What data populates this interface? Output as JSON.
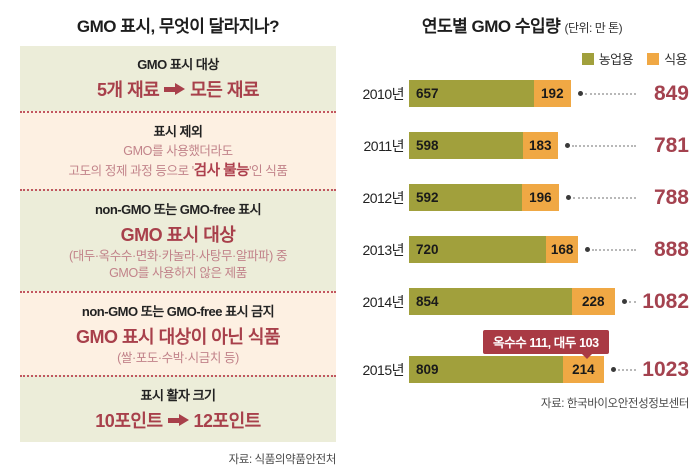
{
  "colors": {
    "section_green_bg": "#ecedd9",
    "section_cream_bg": "#fdf0e2",
    "separator_red": "#c2565f",
    "accent_red": "#a8404b",
    "rose_text": "#c2838a",
    "total_red": "#a4424f",
    "callout_bg": "#a93a44"
  },
  "icons": {
    "arrow": "arrow-right",
    "connector": "dot"
  },
  "left_panel": {
    "title": "GMO 표시, 무엇이 달라지나?",
    "sections": [
      {
        "heading": "GMO 표시 대상",
        "before": "5개 재료",
        "after": "모든 재료"
      },
      {
        "heading": "표시 제외",
        "line1": "GMO를 사용했더라도",
        "line2_prefix": "고도의 정제 과정 등으로 '",
        "line2_strong": "검사 불능",
        "line2_suffix": "'인 식품"
      },
      {
        "heading": "non-GMO 또는 GMO-free 표시",
        "big": "GMO 표시 대상",
        "sub1": "(대두·옥수수·면화·카놀라·사탕무·알파파) 중",
        "sub2": "GMO를 사용하지 않은 제품"
      },
      {
        "heading": "non-GMO 또는 GMO-free 표시 금지",
        "big": "GMO 표시 대상이 아닌 식품",
        "sub1": "(쌀·포도·수박·시금치 등)"
      },
      {
        "heading": "표시 활자 크기",
        "before": "10포인트",
        "after": "12포인트"
      }
    ],
    "source": "자료: 식품의약품안전처"
  },
  "right_panel": {
    "title": "연도별 GMO 수입량",
    "unit": "(단위: 만 톤)",
    "legend": [
      {
        "label": "농업용",
        "color": "#a1a03c"
      },
      {
        "label": "식용",
        "color": "#f0a844"
      }
    ],
    "callout": "옥수수 111, 대두 103",
    "source": "자료: 한국바이오안전성정보센터"
  },
  "chart_data": {
    "type": "bar",
    "orientation": "horizontal",
    "stacked": true,
    "title": "연도별 GMO 수입량",
    "unit": "만 톤",
    "categories": [
      "2010년",
      "2011년",
      "2012년",
      "2013년",
      "2014년",
      "2015년"
    ],
    "series": [
      {
        "name": "농업용",
        "color": "#a1a03c",
        "values": [
          657,
          598,
          592,
          720,
          854,
          809
        ]
      },
      {
        "name": "식용",
        "color": "#f0a844",
        "values": [
          192,
          183,
          196,
          168,
          228,
          214
        ]
      }
    ],
    "totals": [
      849,
      781,
      788,
      888,
      1082,
      1023
    ],
    "xmax": 1082,
    "legend_position": "top-right",
    "annotation": {
      "category": "2015년",
      "text": "옥수수 111, 대두 103"
    }
  }
}
